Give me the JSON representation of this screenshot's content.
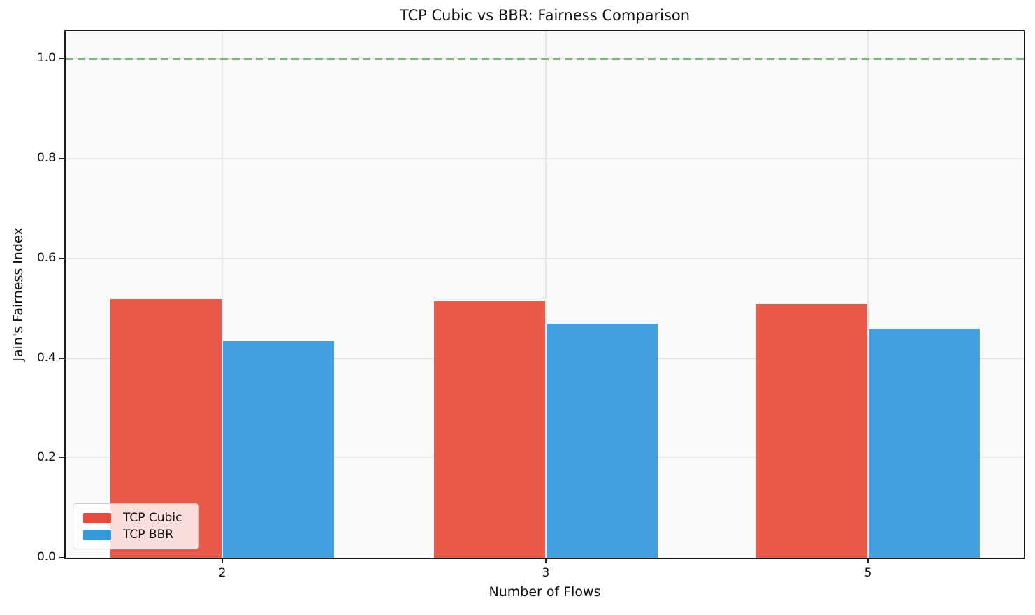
{
  "chart_data": {
    "type": "bar",
    "title": "TCP Cubic vs BBR: Fairness Comparison",
    "xlabel": "Number of Flows",
    "ylabel": "Jain's Fairness Index",
    "categories": [
      "2",
      "3",
      "5"
    ],
    "series": [
      {
        "name": "TCP Cubic",
        "color_rgb": [
          231,
          76,
          60
        ],
        "color_hex": "#e74c3c",
        "values": [
          0.519,
          0.515,
          0.508
        ]
      },
      {
        "name": "TCP BBR",
        "color_rgb": [
          52,
          152,
          219
        ],
        "color_hex": "#3498db",
        "values": [
          0.434,
          0.47,
          0.458
        ]
      }
    ],
    "ylim": [
      0,
      1.055
    ],
    "yticks": [
      0.0,
      0.2,
      0.4,
      0.6,
      0.8,
      1.0
    ],
    "ytick_labels": [
      "0.0",
      "0.2",
      "0.4",
      "0.6",
      "0.8",
      "1.0"
    ],
    "reference_line": {
      "value": 1.0,
      "style": "dashed",
      "color": "#78b273"
    },
    "grid": true,
    "legend_position": "lower left",
    "plot_background": "#f9f9f9"
  }
}
